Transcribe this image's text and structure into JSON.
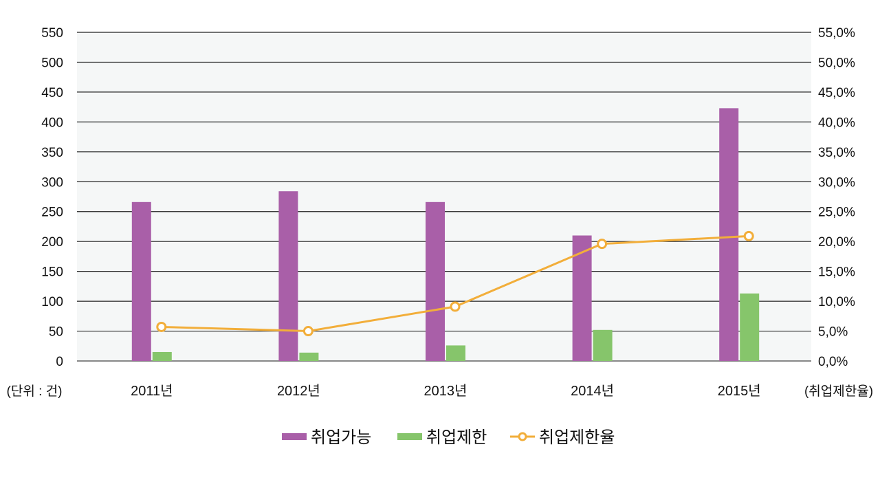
{
  "chart_data": {
    "type": "bar",
    "categories": [
      "2011년",
      "2012년",
      "2013년",
      "2014년",
      "2015년"
    ],
    "series": [
      {
        "name": "취업가능",
        "type": "bar",
        "axis": "left",
        "color": "#a95fa8",
        "values": [
          266,
          284,
          266,
          210,
          423
        ]
      },
      {
        "name": "취업제한",
        "type": "bar",
        "axis": "left",
        "color": "#86c56b",
        "values": [
          15,
          14,
          26,
          52,
          113
        ]
      },
      {
        "name": "취업제한율",
        "type": "line",
        "axis": "right",
        "color": "#f2ae3a",
        "values": [
          5.7,
          5.0,
          9.1,
          19.6,
          20.9
        ]
      }
    ],
    "left_axis": {
      "label": "(단위 : 건)",
      "ylim": [
        0,
        550
      ],
      "ticks": [
        "0",
        "50",
        "100",
        "150",
        "200",
        "250",
        "300",
        "350",
        "400",
        "450",
        "500",
        "550"
      ]
    },
    "right_axis": {
      "label": "(취업제한율)",
      "ylim": [
        0,
        55
      ],
      "ticks": [
        "0,0%",
        "5,0%",
        "10,0%",
        "15,0%",
        "20,0%",
        "25,0%",
        "30,0%",
        "35,0%",
        "40,0%",
        "45,0%",
        "50,0%",
        "55,0%"
      ]
    },
    "grid": true,
    "plot_background": "#f5f7f7",
    "legend_position": "bottom"
  }
}
